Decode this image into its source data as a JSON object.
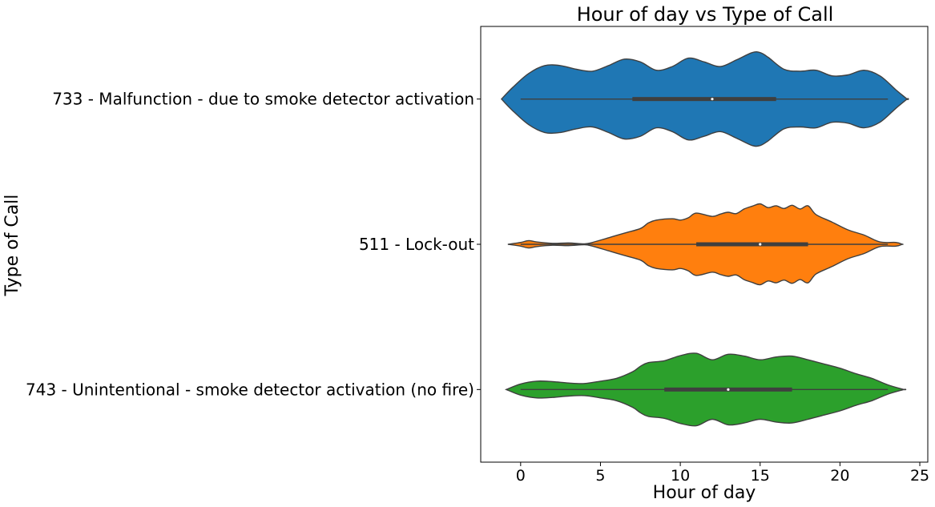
{
  "chart_data": {
    "type": "violin",
    "orientation": "horizontal",
    "title": "Hour of day vs Type of Call",
    "xlabel": "Hour of day",
    "ylabel": "Type of Call",
    "xlim": [
      -2.5,
      25.5
    ],
    "xticks": [
      0,
      5,
      10,
      15,
      20,
      25
    ],
    "grid": false,
    "categories": [
      "733 - Malfunction - due to smoke detector activation",
      "511 - Lock-out",
      "743 - Unintentional - smoke detector activation (no fire)"
    ],
    "series": [
      {
        "category": "733 - Malfunction - due to smoke detector activation",
        "color": "#1f77b4",
        "whisker": [
          0,
          23
        ],
        "q1": 7,
        "median": 12,
        "q3": 16,
        "density_hours": [
          -1.2,
          -0.5,
          0.5,
          1.5,
          2.5,
          3.5,
          4.5,
          5.5,
          6.5,
          7.5,
          8.5,
          9.5,
          10.5,
          11.5,
          12.5,
          13.5,
          14.5,
          15.0,
          15.5,
          16.5,
          17.5,
          18.5,
          19.5,
          20.5,
          21.5,
          22.5,
          23.5,
          24.2
        ],
        "density_width": [
          0.0,
          0.25,
          0.55,
          0.72,
          0.72,
          0.64,
          0.6,
          0.72,
          0.86,
          0.8,
          0.62,
          0.7,
          0.88,
          0.8,
          0.7,
          0.84,
          1.0,
          1.0,
          0.9,
          0.64,
          0.6,
          0.62,
          0.5,
          0.52,
          0.62,
          0.5,
          0.2,
          0.0
        ]
      },
      {
        "category": "511 - Lock-out",
        "color": "#ff7f0e",
        "whisker": [
          0,
          23
        ],
        "q1": 11,
        "median": 15,
        "q3": 18,
        "density_hours": [
          -0.8,
          0.0,
          0.5,
          1.0,
          2.0,
          3.0,
          4.0,
          4.5,
          5.5,
          6.5,
          7.5,
          8.0,
          8.5,
          9.5,
          10.0,
          10.5,
          11.0,
          12.0,
          12.5,
          13.0,
          13.5,
          14.0,
          14.5,
          15.0,
          15.5,
          16.0,
          16.5,
          17.0,
          17.5,
          18.0,
          18.5,
          19.5,
          20.5,
          21.5,
          22.5,
          23.5,
          23.9
        ],
        "density_width": [
          0.0,
          0.04,
          0.08,
          0.05,
          0.02,
          0.03,
          0.01,
          0.04,
          0.14,
          0.24,
          0.34,
          0.46,
          0.52,
          0.55,
          0.52,
          0.57,
          0.67,
          0.6,
          0.65,
          0.69,
          0.66,
          0.76,
          0.82,
          0.87,
          0.79,
          0.83,
          0.77,
          0.84,
          0.76,
          0.83,
          0.64,
          0.48,
          0.31,
          0.2,
          0.05,
          0.04,
          0.0
        ]
      },
      {
        "category": "743 - Unintentional - smoke detector activation (no fire)",
        "color": "#2ca02c",
        "whisker": [
          0,
          23
        ],
        "q1": 9,
        "median": 13,
        "q3": 17,
        "density_hours": [
          -0.9,
          0.0,
          1.0,
          2.0,
          3.0,
          4.0,
          5.0,
          6.0,
          7.0,
          7.5,
          8.0,
          9.0,
          10.0,
          11.0,
          12.0,
          13.0,
          14.0,
          15.0,
          16.0,
          17.0,
          18.0,
          19.0,
          20.0,
          21.0,
          22.0,
          23.0,
          24.0
        ],
        "density_width": [
          0.0,
          0.12,
          0.18,
          0.17,
          0.14,
          0.13,
          0.18,
          0.24,
          0.38,
          0.5,
          0.58,
          0.62,
          0.73,
          0.78,
          0.64,
          0.76,
          0.72,
          0.64,
          0.7,
          0.72,
          0.64,
          0.55,
          0.46,
          0.34,
          0.24,
          0.1,
          0.0
        ]
      }
    ]
  }
}
